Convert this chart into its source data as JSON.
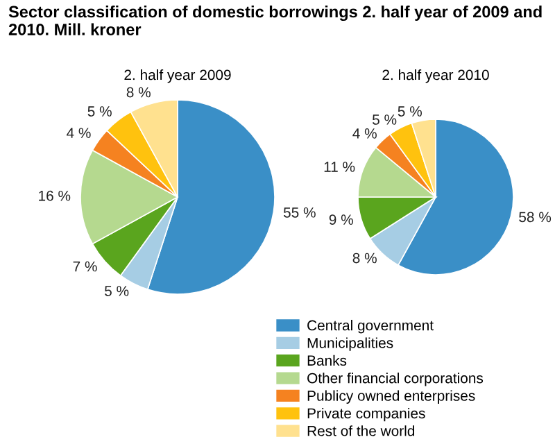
{
  "chart_data": [
    {
      "type": "pie",
      "title": "Sector classification of domestic borrowings 2. half year of 2009 and 2010. Mill. kroner",
      "subtitle": "2. half year 2009",
      "categories": [
        "Central government",
        "Municipalities",
        "Banks",
        "Other financial corporations",
        "Publicy owned enterprises",
        "Private companies",
        "Rest of the world"
      ],
      "values": [
        55,
        5,
        7,
        16,
        4,
        5,
        8
      ],
      "value_labels": [
        "55 %",
        "5 %",
        "7 %",
        "16 %",
        "4 %",
        "5 %",
        "8 %"
      ],
      "colors": [
        "#3a8fc7",
        "#a6cde4",
        "#5aa51e",
        "#b5d98f",
        "#f58220",
        "#ffc20e",
        "#ffe18f"
      ],
      "legend": "bottom"
    },
    {
      "type": "pie",
      "subtitle": "2. half year 2010",
      "values": [
        58,
        8,
        9,
        11,
        4,
        5,
        5
      ],
      "value_labels": [
        "58 %",
        "8 %",
        "9 %",
        "11 %",
        "4 %",
        "5 %",
        "5 %"
      ],
      "colors": [
        "#3a8fc7",
        "#a6cde4",
        "#5aa51e",
        "#b5d98f",
        "#f58220",
        "#ffc20e",
        "#ffe18f"
      ],
      "legend": false
    }
  ]
}
